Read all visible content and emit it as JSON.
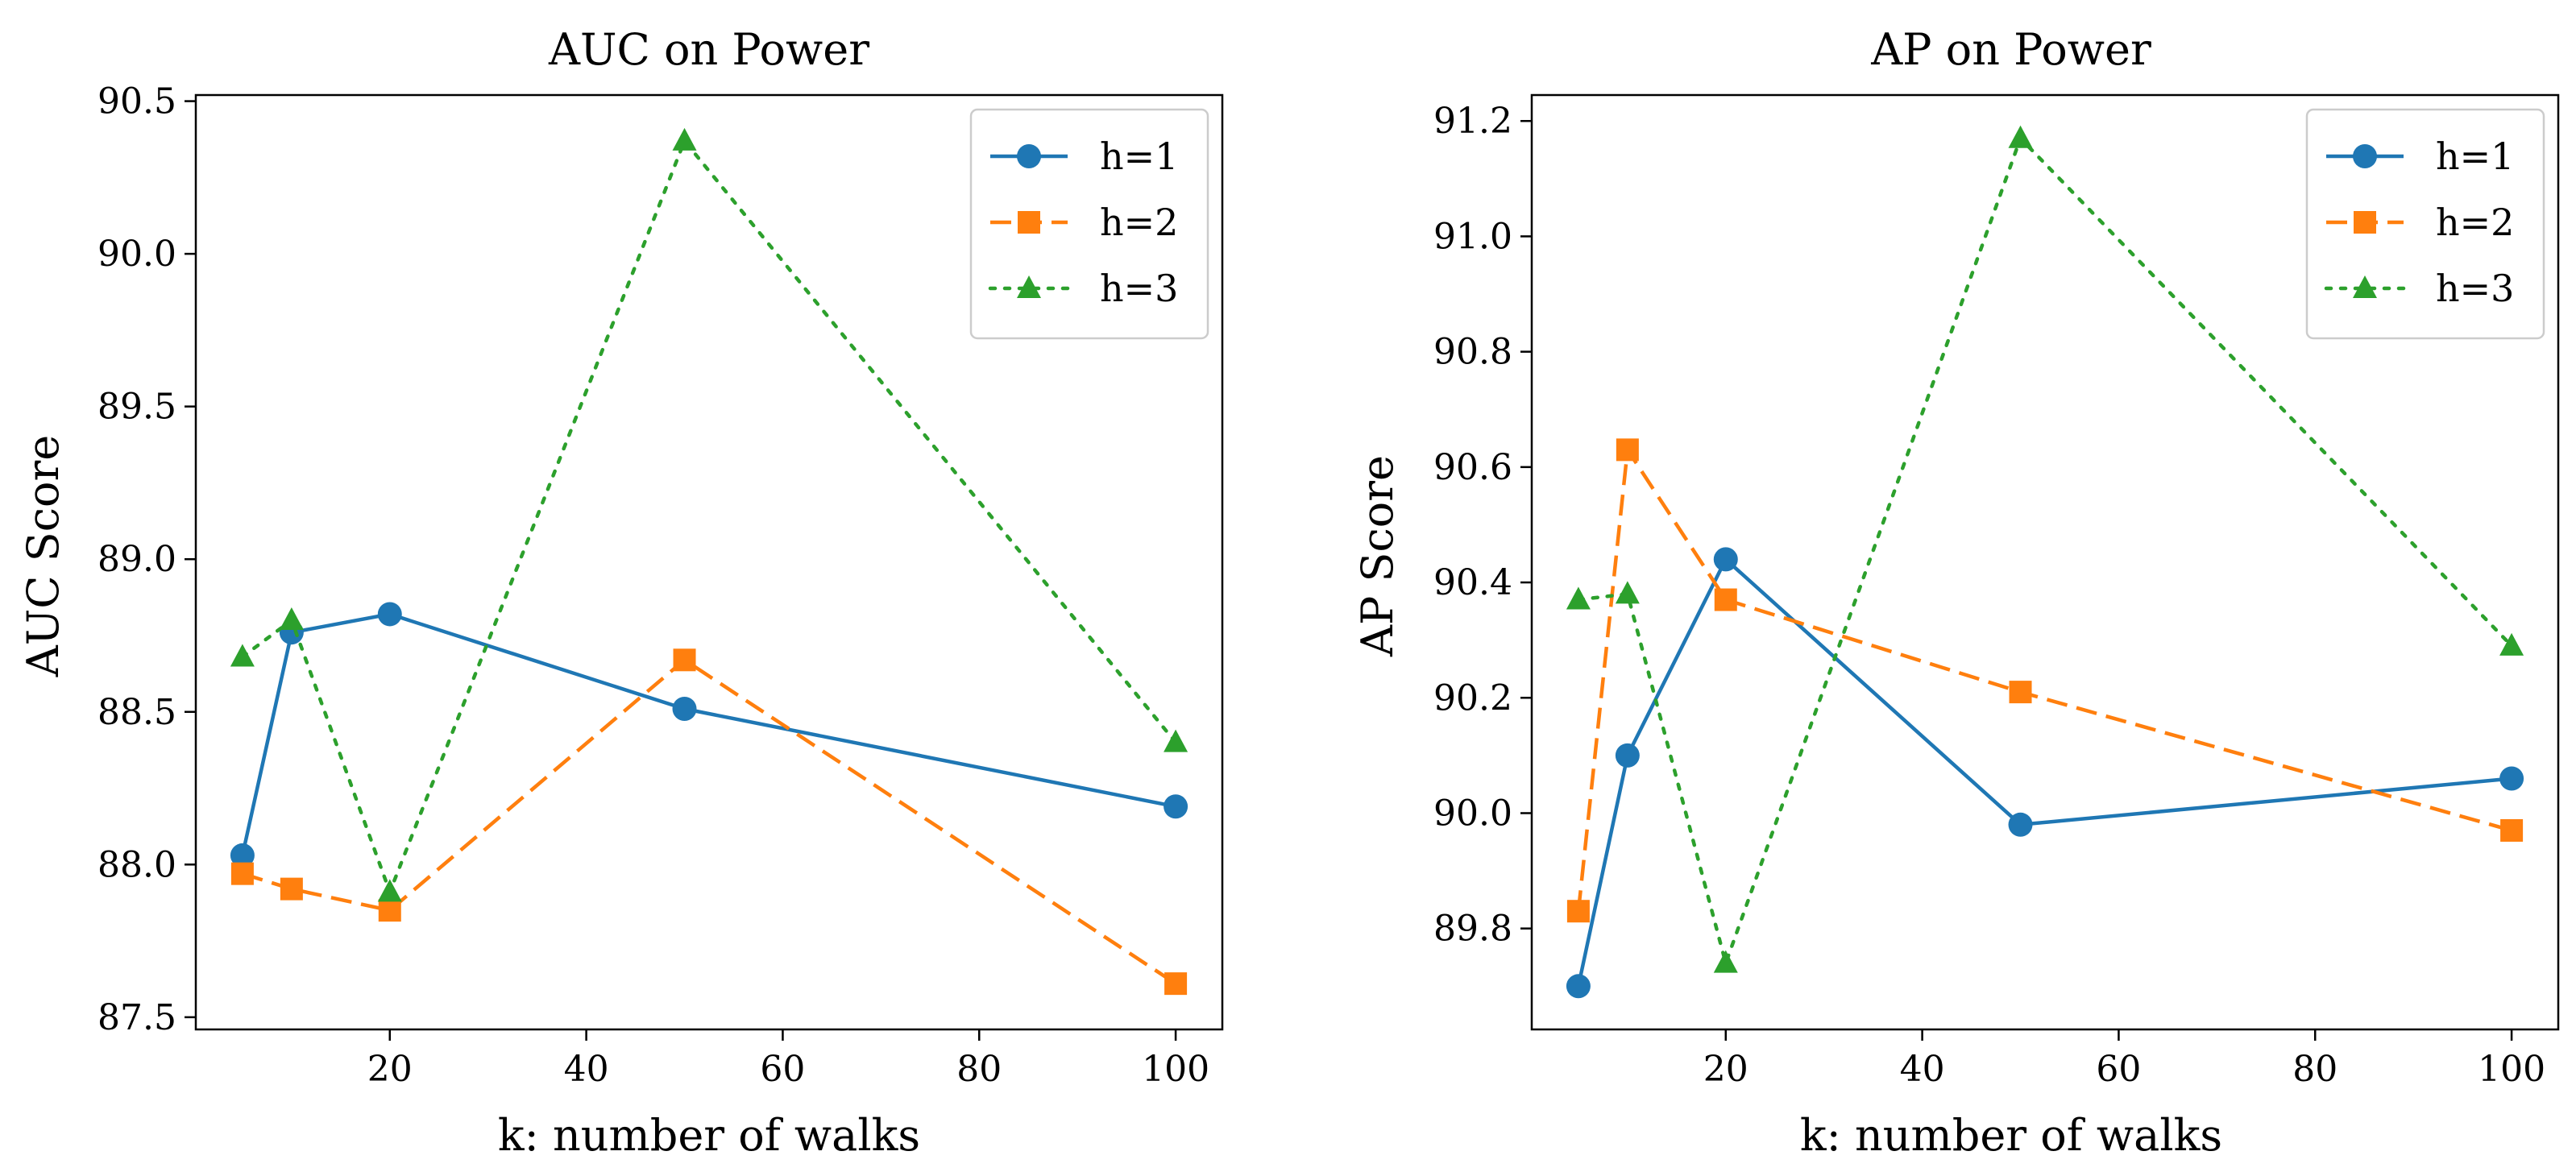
{
  "chart_data": [
    {
      "type": "line",
      "title": "AUC on Power",
      "xlabel": "k: number of walks",
      "ylabel": "AUC Score",
      "xlim": [
        0.25,
        104.75
      ],
      "ylim": [
        87.46,
        90.52
      ],
      "xticks": [
        20,
        40,
        60,
        80,
        100
      ],
      "yticks": [
        87.5,
        88.0,
        88.5,
        89.0,
        89.5,
        90.0,
        90.5
      ],
      "ytick_labels": [
        "87.5",
        "88.0",
        "88.5",
        "89.0",
        "89.5",
        "90.0",
        "90.5"
      ],
      "legend_position": "top-right",
      "x": [
        5,
        10,
        20,
        50,
        100
      ],
      "series": [
        {
          "name": "h=1",
          "color": "#1f77b4",
          "linestyle": "solid",
          "marker": "circle",
          "values": [
            88.03,
            88.76,
            88.82,
            88.51,
            88.19
          ]
        },
        {
          "name": "h=2",
          "color": "#ff7f0e",
          "linestyle": "dashed",
          "marker": "square",
          "values": [
            87.97,
            87.92,
            87.85,
            88.67,
            87.61
          ]
        },
        {
          "name": "h=3",
          "color": "#2ca02c",
          "linestyle": "dotted",
          "marker": "triangle",
          "values": [
            88.68,
            88.8,
            87.91,
            90.37,
            88.4
          ]
        }
      ]
    },
    {
      "type": "line",
      "title": "AP on Power",
      "xlabel": "k: number of walks",
      "ylabel": "AP Score",
      "xlim": [
        0.25,
        104.75
      ],
      "ylim": [
        89.625,
        91.245
      ],
      "xticks": [
        20,
        40,
        60,
        80,
        100
      ],
      "yticks": [
        89.8,
        90.0,
        90.2,
        90.4,
        90.6,
        90.8,
        91.0,
        91.2
      ],
      "ytick_labels": [
        "89.8",
        "90.0",
        "90.2",
        "90.4",
        "90.6",
        "90.8",
        "91.0",
        "91.2"
      ],
      "legend_position": "top-right",
      "x": [
        5,
        10,
        20,
        50,
        100
      ],
      "series": [
        {
          "name": "h=1",
          "color": "#1f77b4",
          "linestyle": "solid",
          "marker": "circle",
          "values": [
            89.7,
            90.1,
            90.44,
            89.98,
            90.06
          ]
        },
        {
          "name": "h=2",
          "color": "#ff7f0e",
          "linestyle": "dashed",
          "marker": "square",
          "values": [
            89.83,
            90.63,
            90.37,
            90.21,
            89.97
          ]
        },
        {
          "name": "h=3",
          "color": "#2ca02c",
          "linestyle": "dotted",
          "marker": "triangle",
          "values": [
            90.37,
            90.38,
            89.74,
            91.17,
            90.29
          ]
        }
      ]
    }
  ]
}
